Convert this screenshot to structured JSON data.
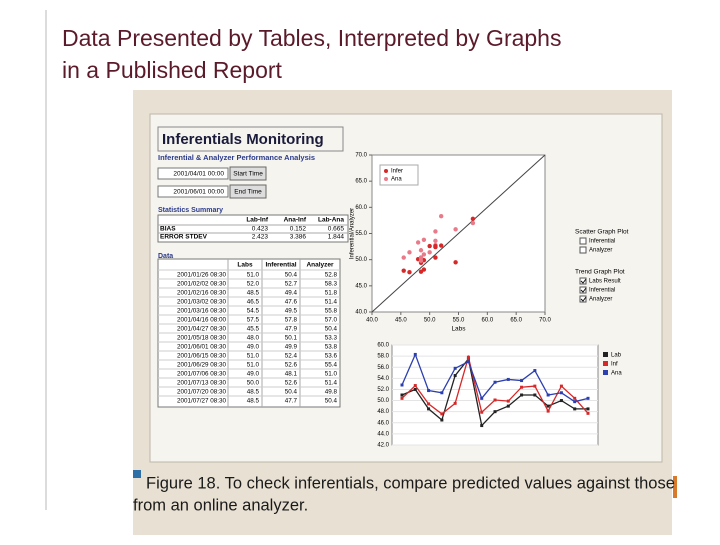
{
  "slide_title": [
    "Data Presented by Tables, Interpreted by Graphs",
    "in a Published Report"
  ],
  "report": {
    "title": "Inferentials Monitoring",
    "subtitle": "Inferential & Analyzer Performance Analysis",
    "start_time": {
      "value": "2001/04/01 00:00",
      "button": "Start Time"
    },
    "end_time": {
      "value": "2001/06/01 00:00",
      "button": "End Time"
    },
    "stats_title": "Statistics Summary",
    "stats": {
      "headers": [
        "Lab-Inf",
        "Ana-Inf",
        "Lab-Ana"
      ],
      "rows": [
        {
          "label": "BIAS",
          "values": [
            "0.423",
            "0.152",
            "0.665"
          ]
        },
        {
          "label": "ERROR STDEV",
          "values": [
            "2.423",
            "3.386",
            "1.844"
          ]
        }
      ]
    },
    "data_title": "Data",
    "data": {
      "headers": [
        "Labs",
        "Inferential",
        "Analyzer"
      ],
      "rows": [
        [
          "2001/01/26 08:30",
          "51.0",
          "50.4",
          "52.8"
        ],
        [
          "2001/02/02 08:30",
          "52.0",
          "52.7",
          "58.3"
        ],
        [
          "2001/02/16 08:30",
          "48.5",
          "49.4",
          "51.8"
        ],
        [
          "2001/03/02 08:30",
          "46.5",
          "47.6",
          "51.4"
        ],
        [
          "2001/03/16 08:30",
          "54.5",
          "49.5",
          "55.8"
        ],
        [
          "2001/04/16 08:00",
          "57.5",
          "57.8",
          "57.0"
        ],
        [
          "2001/04/27 08:30",
          "45.5",
          "47.9",
          "50.4"
        ],
        [
          "2001/05/18 08:30",
          "48.0",
          "50.1",
          "53.3"
        ],
        [
          "2001/06/01 08:30",
          "49.0",
          "49.9",
          "53.8"
        ],
        [
          "2001/06/15 08:30",
          "51.0",
          "52.4",
          "53.6"
        ],
        [
          "2001/06/29 08:30",
          "51.0",
          "52.6",
          "55.4"
        ],
        [
          "2001/07/06 08:30",
          "49.0",
          "48.1",
          "51.0"
        ],
        [
          "2001/07/13 08:30",
          "50.0",
          "52.6",
          "51.4"
        ],
        [
          "2001/07/20 08:30",
          "48.5",
          "50.4",
          "49.8"
        ],
        [
          "2001/07/27 08:30",
          "48.5",
          "47.7",
          "50.4"
        ]
      ]
    },
    "scatter": {
      "legend": [
        "Infer",
        "Ana"
      ],
      "colors": [
        "#d62828",
        "#e87a8a"
      ],
      "xlabel": "Labs",
      "ylabel": "Inferential/Analyzer",
      "xlim": [
        40,
        70
      ],
      "ylim": [
        40,
        70
      ],
      "xticks": [
        {
          "value": 40,
          "label": "40.0"
        },
        {
          "value": 45,
          "label": "45.0"
        },
        {
          "value": 50,
          "label": "50.0"
        },
        {
          "value": 55,
          "label": "55.0"
        },
        {
          "value": 60,
          "label": "60.0"
        },
        {
          "value": 65,
          "label": "65.0"
        },
        {
          "value": 70,
          "label": "70.0"
        }
      ],
      "yticks": [
        {
          "value": 40,
          "label": "40.0"
        },
        {
          "value": 45,
          "label": "45.0"
        },
        {
          "value": 50,
          "label": "50.0"
        },
        {
          "value": 55,
          "label": "55.0"
        },
        {
          "value": 60,
          "label": "60.0"
        },
        {
          "value": 65,
          "label": "65.0"
        },
        {
          "value": 70,
          "label": "70.0"
        }
      ]
    },
    "controls": {
      "scatter_title": "Scatter Graph Plot",
      "scatter_items": [
        "Inferential",
        "Analyzer"
      ],
      "trend_title": "Trend Graph Plot",
      "trend_items": [
        "Labs Result",
        "Inferential",
        "Analyzer"
      ]
    },
    "trend": {
      "legend": [
        "Lab",
        "Inf",
        "Ana"
      ],
      "colors": [
        "#222222",
        "#d62828",
        "#2c3fb0"
      ],
      "ylim": [
        42,
        60
      ],
      "yticks": [
        {
          "value": 42,
          "label": "42.0"
        },
        {
          "value": 44,
          "label": "44.0"
        },
        {
          "value": 46,
          "label": "46.0"
        },
        {
          "value": 48,
          "label": "48.0"
        },
        {
          "value": 50,
          "label": "50.0"
        },
        {
          "value": 52,
          "label": "52.0"
        },
        {
          "value": 54,
          "label": "54.0"
        },
        {
          "value": 56,
          "label": "56.0"
        },
        {
          "value": 58,
          "label": "58.0"
        },
        {
          "value": 60,
          "label": "60.0"
        }
      ]
    }
  },
  "caption": [
    "Figure 18. To check inferentials, compare predicted values against those",
    "from an online analyzer."
  ]
}
